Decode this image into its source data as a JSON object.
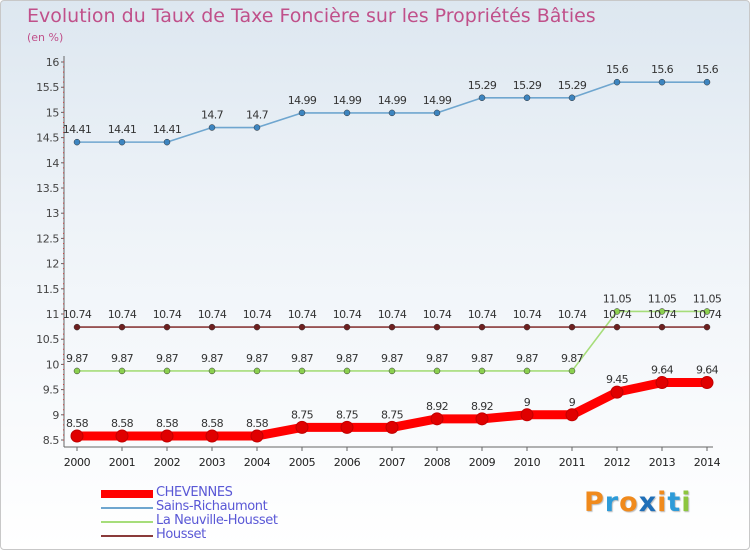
{
  "title": "Evolution du Taux de Taxe Foncière sur les Propriétés Bâties",
  "unit": "(en %)",
  "logo": {
    "text": "Proxiti",
    "letter_colors": [
      "#f08a1c",
      "#2d9bd8",
      "#f08a1c",
      "#1f6fb8",
      "#f08a1c",
      "#2d9bd8",
      "#8dc63f"
    ]
  },
  "chart_data": {
    "type": "line",
    "x": [
      "2000",
      "2001",
      "2002",
      "2003",
      "2004",
      "2005",
      "2006",
      "2007",
      "2008",
      "2009",
      "2010",
      "2011",
      "2012",
      "2013",
      "2014"
    ],
    "ylim": [
      8.5,
      16
    ],
    "yticks": [
      "8.5",
      "9",
      "9.5",
      "10",
      "10.5",
      "11",
      "11.5",
      "12",
      "12.5",
      "13",
      "13.5",
      "14",
      "14.5",
      "15",
      "15.5",
      "16"
    ],
    "grid": false,
    "legend_position": "bottom-left",
    "series": [
      {
        "name": "CHEVENNES",
        "color": "#ff0000",
        "marker_color": "#e00000",
        "bold": true,
        "values": [
          8.58,
          8.58,
          8.58,
          8.58,
          8.58,
          8.75,
          8.75,
          8.75,
          8.92,
          8.92,
          9,
          9,
          9.45,
          9.64,
          9.64
        ],
        "labels": [
          "8.58",
          "8.58",
          "8.58",
          "8.58",
          "8.58",
          "8.75",
          "8.75",
          "8.75",
          "8.92",
          "8.92",
          "9",
          "9",
          "9.45",
          "9.64",
          "9.64"
        ]
      },
      {
        "name": "Sains-Richaumont",
        "color": "#6fa6cf",
        "marker_color": "#3d85c0",
        "bold": false,
        "values": [
          14.41,
          14.41,
          14.41,
          14.7,
          14.7,
          14.99,
          14.99,
          14.99,
          14.99,
          15.29,
          15.29,
          15.29,
          15.6,
          15.6,
          15.6
        ],
        "labels": [
          "14.41",
          "14.41",
          "14.41",
          "14.7",
          "14.7",
          "14.99",
          "14.99",
          "14.99",
          "14.99",
          "15.29",
          "15.29",
          "15.29",
          "15.6",
          "15.6",
          "15.6"
        ]
      },
      {
        "name": "La Neuville-Housset",
        "color": "#a6dd7a",
        "marker_color": "#8bd04f",
        "bold": false,
        "values": [
          9.87,
          9.87,
          9.87,
          9.87,
          9.87,
          9.87,
          9.87,
          9.87,
          9.87,
          9.87,
          9.87,
          9.87,
          11.05,
          11.05,
          11.05
        ],
        "labels": [
          "9.87",
          "9.87",
          "9.87",
          "9.87",
          "9.87",
          "9.87",
          "9.87",
          "9.87",
          "9.87",
          "9.87",
          "9.87",
          "9.87",
          "11.05",
          "11.05",
          "11.05"
        ]
      },
      {
        "name": "Housset",
        "color": "#8a3a3a",
        "marker_color": "#6e2020",
        "bold": false,
        "values": [
          10.74,
          10.74,
          10.74,
          10.74,
          10.74,
          10.74,
          10.74,
          10.74,
          10.74,
          10.74,
          10.74,
          10.74,
          10.74,
          10.74,
          10.74
        ],
        "labels": [
          "10.74",
          "10.74",
          "10.74",
          "10.74",
          "10.74",
          "10.74",
          "10.74",
          "10.74",
          "10.74",
          "10.74",
          "10.74",
          "10.74",
          "10.74",
          "10.74",
          "10.74"
        ]
      }
    ]
  }
}
